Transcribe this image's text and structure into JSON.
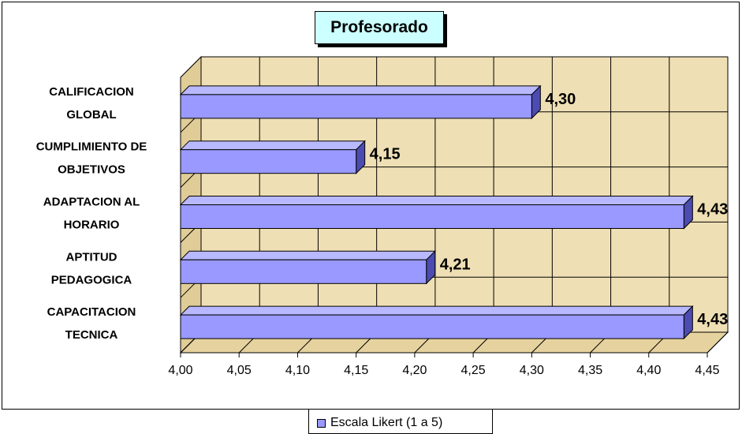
{
  "colors": {
    "bar_front": "#9999ff",
    "bar_top": "#b8b8ff",
    "bar_side": "#4b4bb0",
    "wall": "#efdfb4",
    "wall_side": "#e0cc96",
    "floor": "#e6d29e",
    "title_bg": "#ccffff"
  },
  "chart_data": {
    "type": "bar",
    "orientation": "horizontal",
    "title": "Profesorado",
    "categories": [
      "CAPACITACION TECNICA",
      "APTITUD PEDAGOGICA",
      "ADAPTACION AL HORARIO",
      "CUMPLIMIENTO DE OBJETIVOS",
      "CALIFICACION GLOBAL"
    ],
    "category_lines": [
      [
        "CAPACITACION",
        "TECNICA"
      ],
      [
        "APTITUD",
        "PEDAGOGICA"
      ],
      [
        "ADAPTACION AL",
        "HORARIO"
      ],
      [
        "CUMPLIMIENTO DE",
        "OBJETIVOS"
      ],
      [
        "CALIFICACION",
        "GLOBAL"
      ]
    ],
    "series": [
      {
        "name": "Escala Likert (1 a 5)",
        "values": [
          4.43,
          4.21,
          4.43,
          4.15,
          4.3
        ],
        "value_labels": [
          "4,43",
          "4,21",
          "4,43",
          "4,15",
          "4,30"
        ]
      }
    ],
    "xlim": [
      4.0,
      4.45
    ],
    "xticks": [
      4.0,
      4.05,
      4.1,
      4.15,
      4.2,
      4.25,
      4.3,
      4.35,
      4.4,
      4.45
    ],
    "xtick_labels": [
      "4,00",
      "4,05",
      "4,10",
      "4,15",
      "4,20",
      "4,25",
      "4,30",
      "4,35",
      "4,40",
      "4,45"
    ],
    "grid": true,
    "three_d": true,
    "legend_position": "bottom"
  }
}
